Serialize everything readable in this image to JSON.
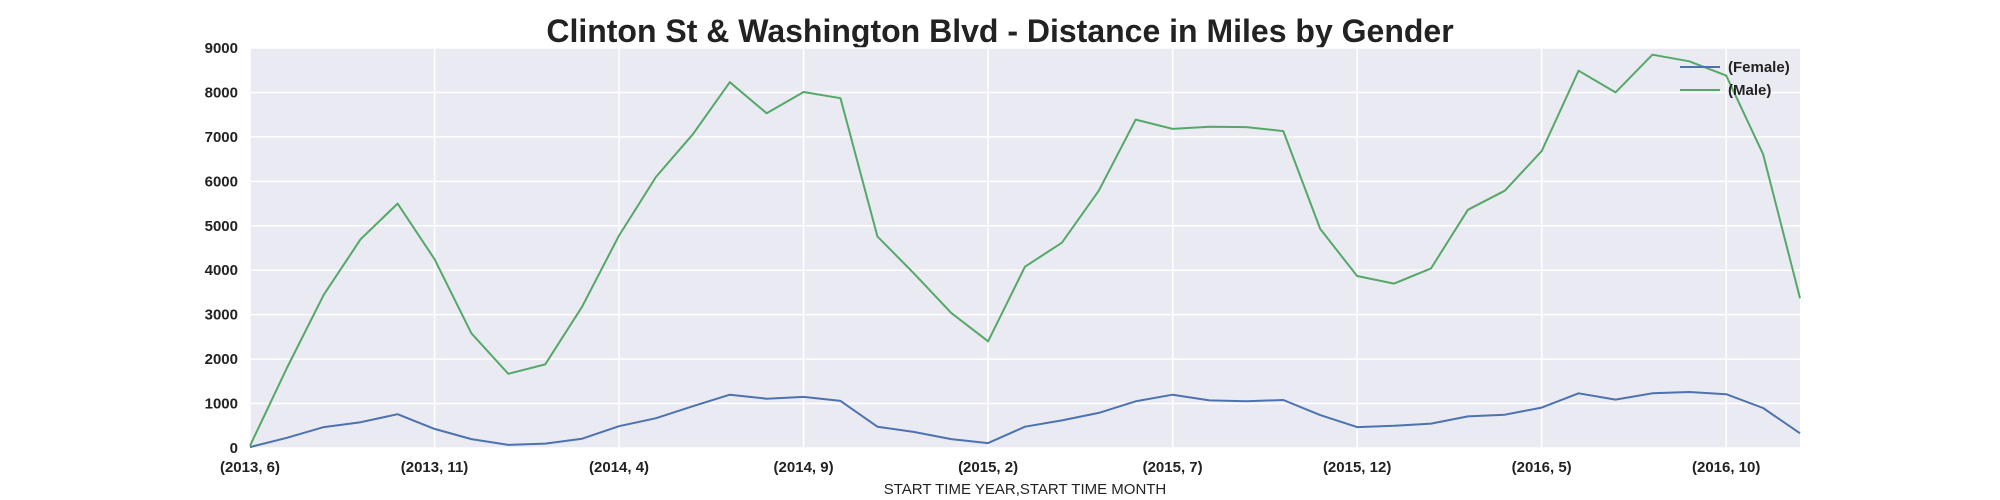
{
  "chart_data": {
    "type": "line",
    "title": "Clinton St & Washington Blvd - Distance in Miles by Gender",
    "xlabel": "START TIME YEAR,START TIME MONTH",
    "ylabel": "",
    "ylim": [
      0,
      9000
    ],
    "yticks": [
      0,
      1000,
      2000,
      3000,
      4000,
      5000,
      6000,
      7000,
      8000,
      9000
    ],
    "x_tick_labels": [
      "(2013, 6)",
      "(2013, 11)",
      "(2014, 4)",
      "(2014, 9)",
      "(2015, 2)",
      "(2015, 7)",
      "(2015, 12)",
      "(2016, 5)",
      "(2016, 10)"
    ],
    "x_tick_indices": [
      0,
      5,
      10,
      15,
      20,
      25,
      30,
      35,
      40
    ],
    "grid": true,
    "legend_position": "top-right",
    "categories": [
      "(2013, 6)",
      "(2013, 7)",
      "(2013, 8)",
      "(2013, 9)",
      "(2013, 10)",
      "(2013, 11)",
      "(2013, 12)",
      "(2014, 1)",
      "(2014, 2)",
      "(2014, 3)",
      "(2014, 4)",
      "(2014, 5)",
      "(2014, 6)",
      "(2014, 7)",
      "(2014, 8)",
      "(2014, 9)",
      "(2014, 10)",
      "(2014, 11)",
      "(2014, 12)",
      "(2015, 1)",
      "(2015, 2)",
      "(2015, 3)",
      "(2015, 4)",
      "(2015, 5)",
      "(2015, 6)",
      "(2015, 7)",
      "(2015, 8)",
      "(2015, 9)",
      "(2015, 10)",
      "(2015, 11)",
      "(2015, 12)",
      "(2016, 1)",
      "(2016, 2)",
      "(2016, 3)",
      "(2016, 4)",
      "(2016, 5)",
      "(2016, 6)",
      "(2016, 7)",
      "(2016, 8)",
      "(2016, 9)",
      "(2016, 10)",
      "(2016, 11)",
      "(2016, 12)"
    ],
    "series": [
      {
        "name": "(Female)",
        "color": "#4c72b0",
        "values": [
          20,
          230,
          470,
          580,
          760,
          430,
          200,
          70,
          100,
          210,
          490,
          670,
          940,
          1200,
          1110,
          1150,
          1060,
          480,
          360,
          200,
          110,
          480,
          620,
          790,
          1050,
          1200,
          1070,
          1050,
          1080,
          740,
          470,
          500,
          550,
          710,
          750,
          910,
          1230,
          1090,
          1230,
          1260,
          1210,
          900,
          330
        ]
      },
      {
        "name": "(Male)",
        "color": "#55a868",
        "values": [
          50,
          1800,
          3450,
          4700,
          5500,
          4250,
          2580,
          1670,
          1880,
          3180,
          4780,
          6100,
          7060,
          8230,
          7530,
          8010,
          7870,
          4760,
          3920,
          3040,
          2400,
          4080,
          4620,
          5790,
          7390,
          7180,
          7230,
          7220,
          7130,
          4930,
          3870,
          3700,
          4040,
          5360,
          5790,
          6680,
          8490,
          8000,
          8850,
          8700,
          8380,
          6610,
          3370
        ]
      }
    ]
  }
}
